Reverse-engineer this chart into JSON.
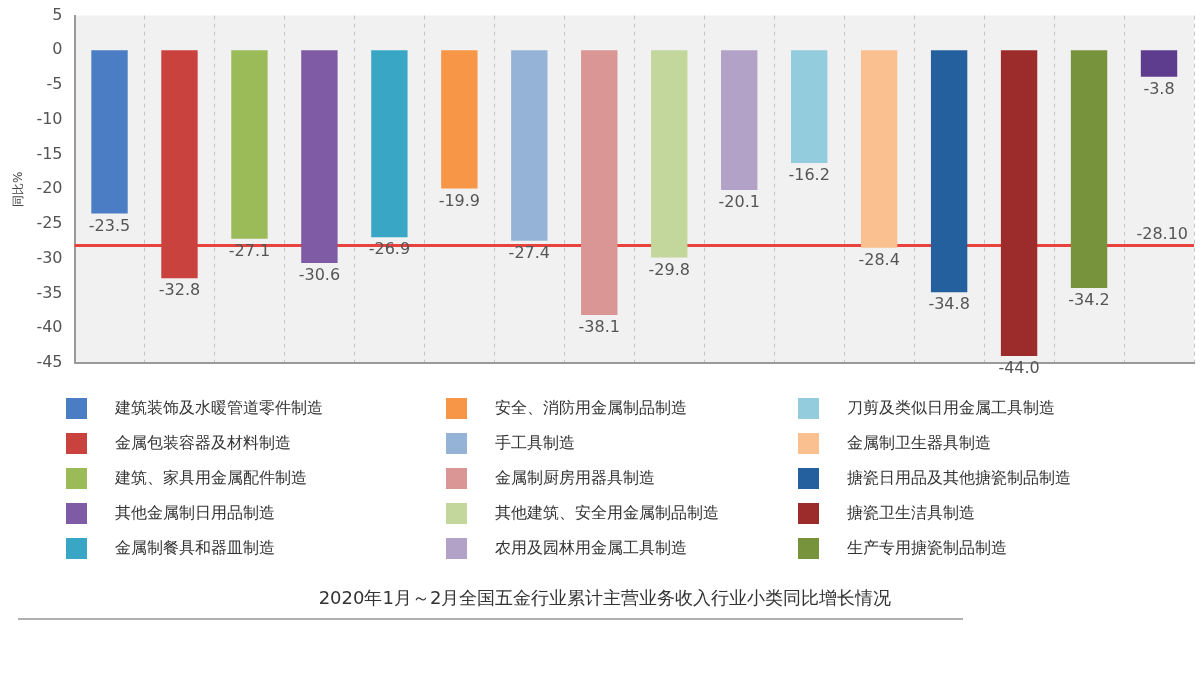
{
  "chart_data": {
    "type": "bar",
    "title": "2020年1月～2月全国五金行业累计主营业务收入行业小类同比增长情况",
    "ylabel": "同比%",
    "categories": [
      null,
      null,
      null,
      null,
      null,
      null,
      null,
      null,
      null,
      null,
      null,
      null,
      null,
      null,
      null,
      null
    ],
    "series": [
      {
        "name": "建筑装饰及水暖管道零件制造",
        "color": "#4a7dc4",
        "values": [
          -23.5,
          null,
          null,
          null,
          null,
          null,
          null,
          null,
          null,
          null,
          null,
          null,
          null,
          null,
          null,
          null
        ],
        "value_labels": [
          "-23.5",
          null,
          null,
          null,
          null,
          null,
          null,
          null,
          null,
          null,
          null,
          null,
          null,
          null,
          null,
          null
        ]
      },
      {
        "name": "金属包装容器及材料制造",
        "color": "#c9423e",
        "values": [
          null,
          -32.8,
          null,
          null,
          null,
          null,
          null,
          null,
          null,
          null,
          null,
          null,
          null,
          null,
          null,
          null
        ],
        "value_labels": [
          null,
          "-32.8",
          null,
          null,
          null,
          null,
          null,
          null,
          null,
          null,
          null,
          null,
          null,
          null,
          null,
          null
        ]
      },
      {
        "name": "建筑、家具用金属配件制造",
        "color": "#9bbb59",
        "values": [
          null,
          null,
          -27.1,
          null,
          null,
          null,
          null,
          null,
          null,
          null,
          null,
          null,
          null,
          null,
          null,
          null
        ],
        "value_labels": [
          null,
          null,
          "-27.1",
          null,
          null,
          null,
          null,
          null,
          null,
          null,
          null,
          null,
          null,
          null,
          null,
          null
        ]
      },
      {
        "name": "其他金属制日用品制造",
        "color": "#7f5ba6",
        "values": [
          null,
          null,
          null,
          -30.6,
          null,
          null,
          null,
          null,
          null,
          null,
          null,
          null,
          null,
          null,
          null,
          null
        ],
        "value_labels": [
          null,
          null,
          null,
          "-30.6",
          null,
          null,
          null,
          null,
          null,
          null,
          null,
          null,
          null,
          null,
          null,
          null
        ]
      },
      {
        "name": "金属制餐具和器皿制造",
        "color": "#3aa6c6",
        "values": [
          null,
          null,
          null,
          null,
          -26.9,
          null,
          null,
          null,
          null,
          null,
          null,
          null,
          null,
          null,
          null,
          null
        ],
        "value_labels": [
          null,
          null,
          null,
          null,
          "-26.9",
          null,
          null,
          null,
          null,
          null,
          null,
          null,
          null,
          null,
          null,
          null
        ]
      },
      {
        "name": "安全、消防用金属制品制造",
        "color": "#f79646",
        "values": [
          null,
          null,
          null,
          null,
          null,
          -19.9,
          null,
          null,
          null,
          null,
          null,
          null,
          null,
          null,
          null,
          null
        ],
        "value_labels": [
          null,
          null,
          null,
          null,
          null,
          "-19.9",
          null,
          null,
          null,
          null,
          null,
          null,
          null,
          null,
          null,
          null
        ]
      },
      {
        "name": "手工具制造",
        "color": "#95b3d7",
        "values": [
          null,
          null,
          null,
          null,
          null,
          null,
          -27.4,
          null,
          null,
          null,
          null,
          null,
          null,
          null,
          null,
          null
        ],
        "value_labels": [
          null,
          null,
          null,
          null,
          null,
          null,
          "-27.4",
          null,
          null,
          null,
          null,
          null,
          null,
          null,
          null,
          null
        ]
      },
      {
        "name": "金属制厨房用器具制造",
        "color": "#d99694",
        "values": [
          null,
          null,
          null,
          null,
          null,
          null,
          null,
          -38.1,
          null,
          null,
          null,
          null,
          null,
          null,
          null,
          null
        ],
        "value_labels": [
          null,
          null,
          null,
          null,
          null,
          null,
          null,
          "-38.1",
          null,
          null,
          null,
          null,
          null,
          null,
          null,
          null
        ]
      },
      {
        "name": "其他建筑、安全用金属制品制造",
        "color": "#c3d69b",
        "values": [
          null,
          null,
          null,
          null,
          null,
          null,
          null,
          null,
          -29.8,
          null,
          null,
          null,
          null,
          null,
          null,
          null
        ],
        "value_labels": [
          null,
          null,
          null,
          null,
          null,
          null,
          null,
          null,
          "-29.8",
          null,
          null,
          null,
          null,
          null,
          null,
          null
        ]
      },
      {
        "name": "农用及园林用金属工具制造",
        "color": "#b3a2c7",
        "values": [
          null,
          null,
          null,
          null,
          null,
          null,
          null,
          null,
          null,
          -20.1,
          null,
          null,
          null,
          null,
          null,
          null
        ],
        "value_labels": [
          null,
          null,
          null,
          null,
          null,
          null,
          null,
          null,
          null,
          "-20.1",
          null,
          null,
          null,
          null,
          null,
          null
        ]
      },
      {
        "name": "刀剪及类似日用金属工具制造",
        "color": "#93cddd",
        "values": [
          null,
          null,
          null,
          null,
          null,
          null,
          null,
          null,
          null,
          null,
          -16.2,
          null,
          null,
          null,
          null,
          null
        ],
        "value_labels": [
          null,
          null,
          null,
          null,
          null,
          null,
          null,
          null,
          null,
          null,
          "-16.2",
          null,
          null,
          null,
          null,
          null
        ]
      },
      {
        "name": "金属制卫生器具制造",
        "color": "#fac090",
        "values": [
          null,
          null,
          null,
          null,
          null,
          null,
          null,
          null,
          null,
          null,
          null,
          -28.4,
          null,
          null,
          null,
          null
        ],
        "value_labels": [
          null,
          null,
          null,
          null,
          null,
          null,
          null,
          null,
          null,
          null,
          null,
          "-28.4",
          null,
          null,
          null,
          null
        ]
      },
      {
        "name": "搪瓷日用品及其他搪瓷制品制造",
        "color": "#245f9e",
        "values": [
          null,
          null,
          null,
          null,
          null,
          null,
          null,
          null,
          null,
          null,
          null,
          null,
          -34.8,
          null,
          null,
          null
        ],
        "value_labels": [
          null,
          null,
          null,
          null,
          null,
          null,
          null,
          null,
          null,
          null,
          null,
          null,
          "-34.8",
          null,
          null,
          null
        ]
      },
      {
        "name": "搪瓷卫生洁具制造",
        "color": "#9c2b2c",
        "values": [
          null,
          null,
          null,
          null,
          null,
          null,
          null,
          null,
          null,
          null,
          null,
          null,
          null,
          -44.0,
          null,
          null
        ],
        "value_labels": [
          null,
          null,
          null,
          null,
          null,
          null,
          null,
          null,
          null,
          null,
          null,
          null,
          null,
          "-44.0",
          null,
          null
        ]
      },
      {
        "name": "生产专用搪瓷制品制造",
        "color": "#77933c",
        "values": [
          null,
          null,
          null,
          null,
          null,
          null,
          null,
          null,
          null,
          null,
          null,
          null,
          null,
          null,
          -34.2,
          null
        ],
        "value_labels": [
          null,
          null,
          null,
          null,
          null,
          null,
          null,
          null,
          null,
          null,
          null,
          null,
          null,
          null,
          "-34.2",
          null
        ]
      },
      {
        "color": "#5f3d8e",
        "values": [
          null,
          null,
          null,
          null,
          null,
          null,
          null,
          null,
          null,
          null,
          null,
          null,
          null,
          null,
          null,
          -3.8
        ],
        "value_labels": [
          null,
          null,
          null,
          null,
          null,
          null,
          null,
          null,
          null,
          null,
          null,
          null,
          null,
          null,
          null,
          "-3.8"
        ]
      }
    ],
    "ylim": [
      -45,
      5
    ],
    "yticks": [
      -45,
      -40,
      -35,
      -30,
      -25,
      -20,
      -15,
      -10,
      -5,
      0,
      5
    ],
    "ref_lines": [
      {
        "axis": "y",
        "value": -28.1,
        "label": "-28.10",
        "color": "#e8423c"
      }
    ],
    "grid": "x",
    "legend": "bottom",
    "tick_labels": "y"
  }
}
